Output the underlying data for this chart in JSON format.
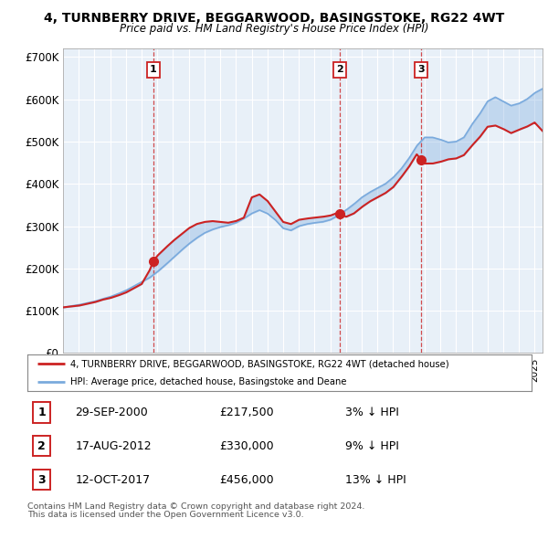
{
  "title": "4, TURNBERRY DRIVE, BEGGARWOOD, BASINGSTOKE, RG22 4WT",
  "subtitle": "Price paid vs. HM Land Registry's House Price Index (HPI)",
  "ylabel_ticks": [
    "£0",
    "£100K",
    "£200K",
    "£300K",
    "£400K",
    "£500K",
    "£600K",
    "£700K"
  ],
  "ylim": [
    0,
    720000
  ],
  "xlim_start": 1995.0,
  "xlim_end": 2025.5,
  "sale_dates": [
    2000.75,
    2012.62,
    2017.79
  ],
  "sale_prices": [
    217500,
    330000,
    456000
  ],
  "sale_labels": [
    "1",
    "2",
    "3"
  ],
  "legend_red": "4, TURNBERRY DRIVE, BEGGARWOOD, BASINGSTOKE, RG22 4WT (detached house)",
  "legend_blue": "HPI: Average price, detached house, Basingstoke and Deane",
  "table_data": [
    [
      "1",
      "29-SEP-2000",
      "£217,500",
      "3% ↓ HPI"
    ],
    [
      "2",
      "17-AUG-2012",
      "£330,000",
      "9% ↓ HPI"
    ],
    [
      "3",
      "12-OCT-2017",
      "£456,000",
      "13% ↓ HPI"
    ]
  ],
  "footnote1": "Contains HM Land Registry data © Crown copyright and database right 2024.",
  "footnote2": "This data is licensed under the Open Government Licence v3.0.",
  "red_color": "#cc2222",
  "blue_color": "#7aaadd",
  "fill_color": "#ddeeff",
  "chart_bg": "#e8f0f8",
  "grid_color": "#ffffff",
  "background_color": "#ffffff",
  "hpi_knots_x": [
    1995.0,
    1995.5,
    1996.0,
    1996.5,
    1997.0,
    1997.5,
    1998.0,
    1998.5,
    1999.0,
    1999.5,
    2000.0,
    2000.5,
    2001.0,
    2001.5,
    2002.0,
    2002.5,
    2003.0,
    2003.5,
    2004.0,
    2004.5,
    2005.0,
    2005.5,
    2006.0,
    2006.5,
    2007.0,
    2007.5,
    2008.0,
    2008.5,
    2009.0,
    2009.5,
    2010.0,
    2010.5,
    2011.0,
    2011.5,
    2012.0,
    2012.5,
    2013.0,
    2013.5,
    2014.0,
    2014.5,
    2015.0,
    2015.5,
    2016.0,
    2016.5,
    2017.0,
    2017.5,
    2018.0,
    2018.5,
    2019.0,
    2019.5,
    2020.0,
    2020.5,
    2021.0,
    2021.5,
    2022.0,
    2022.5,
    2023.0,
    2023.5,
    2024.0,
    2024.5,
    2025.0,
    2025.5
  ],
  "hpi_knots_y": [
    108000,
    111000,
    114000,
    118000,
    122000,
    128000,
    133000,
    140000,
    148000,
    158000,
    168000,
    178000,
    192000,
    208000,
    225000,
    242000,
    258000,
    272000,
    284000,
    292000,
    298000,
    302000,
    308000,
    318000,
    330000,
    338000,
    330000,
    315000,
    295000,
    290000,
    300000,
    305000,
    308000,
    310000,
    315000,
    325000,
    338000,
    352000,
    368000,
    380000,
    390000,
    400000,
    415000,
    435000,
    460000,
    490000,
    510000,
    510000,
    505000,
    498000,
    500000,
    510000,
    540000,
    565000,
    595000,
    605000,
    595000,
    585000,
    590000,
    600000,
    615000,
    625000
  ],
  "red_knots_x": [
    1995.0,
    1995.5,
    1996.0,
    1996.5,
    1997.0,
    1997.5,
    1998.0,
    1998.5,
    1999.0,
    1999.5,
    2000.0,
    2000.5,
    2000.75,
    2001.0,
    2001.5,
    2002.0,
    2002.5,
    2003.0,
    2003.5,
    2004.0,
    2004.5,
    2005.0,
    2005.5,
    2006.0,
    2006.5,
    2007.0,
    2007.5,
    2008.0,
    2008.5,
    2009.0,
    2009.5,
    2010.0,
    2010.5,
    2011.0,
    2011.5,
    2012.0,
    2012.5,
    2012.62,
    2013.0,
    2013.5,
    2014.0,
    2014.5,
    2015.0,
    2015.5,
    2016.0,
    2016.5,
    2017.0,
    2017.5,
    2017.79,
    2018.0,
    2018.5,
    2019.0,
    2019.5,
    2020.0,
    2020.5,
    2021.0,
    2021.5,
    2022.0,
    2022.5,
    2023.0,
    2023.5,
    2024.0,
    2024.5,
    2025.0,
    2025.5
  ],
  "red_knots_y": [
    108000,
    110000,
    112000,
    116000,
    120000,
    126000,
    130000,
    136000,
    143000,
    153000,
    163000,
    195000,
    217500,
    230000,
    248000,
    265000,
    280000,
    295000,
    305000,
    310000,
    312000,
    310000,
    308000,
    312000,
    320000,
    368000,
    375000,
    360000,
    335000,
    310000,
    305000,
    315000,
    318000,
    320000,
    322000,
    325000,
    332000,
    330000,
    322000,
    330000,
    345000,
    358000,
    368000,
    378000,
    392000,
    415000,
    440000,
    470000,
    456000,
    448000,
    448000,
    452000,
    458000,
    460000,
    468000,
    490000,
    510000,
    535000,
    538000,
    530000,
    520000,
    528000,
    535000,
    545000,
    525000
  ]
}
